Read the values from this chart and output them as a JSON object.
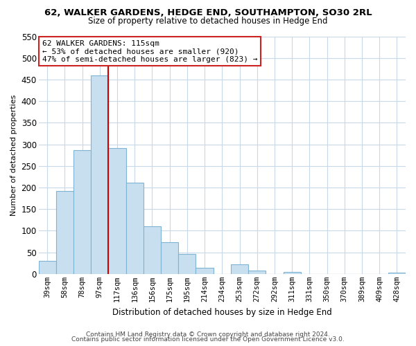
{
  "title_line1": "62, WALKER GARDENS, HEDGE END, SOUTHAMPTON, SO30 2RL",
  "title_line2": "Size of property relative to detached houses in Hedge End",
  "xlabel": "Distribution of detached houses by size in Hedge End",
  "ylabel": "Number of detached properties",
  "bar_labels": [
    "39sqm",
    "58sqm",
    "78sqm",
    "97sqm",
    "117sqm",
    "136sqm",
    "156sqm",
    "175sqm",
    "195sqm",
    "214sqm",
    "234sqm",
    "253sqm",
    "272sqm",
    "292sqm",
    "311sqm",
    "331sqm",
    "350sqm",
    "370sqm",
    "389sqm",
    "409sqm",
    "428sqm"
  ],
  "bar_values": [
    30,
    192,
    287,
    459,
    291,
    212,
    110,
    74,
    46,
    14,
    0,
    22,
    8,
    0,
    5,
    0,
    0,
    0,
    0,
    0,
    3
  ],
  "bar_color": "#c8dff0",
  "bar_edge_color": "#7fb3d3",
  "red_line_after_index": 3,
  "marker_color": "#cc0000",
  "ylim": [
    0,
    550
  ],
  "yticks": [
    0,
    50,
    100,
    150,
    200,
    250,
    300,
    350,
    400,
    450,
    500,
    550
  ],
  "annotation_title": "62 WALKER GARDENS: 115sqm",
  "annotation_line1": "← 53% of detached houses are smaller (920)",
  "annotation_line2": "47% of semi-detached houses are larger (823) →",
  "footer_line1": "Contains HM Land Registry data © Crown copyright and database right 2024.",
  "footer_line2": "Contains public sector information licensed under the Open Government Licence v3.0.",
  "background_color": "#ffffff",
  "grid_color": "#c8d8e8",
  "title_fontsize": 9.5,
  "subtitle_fontsize": 8.5,
  "xlabel_fontsize": 8.5,
  "ylabel_fontsize": 8,
  "tick_fontsize": 7.5,
  "annotation_fontsize": 8,
  "footer_fontsize": 6.5
}
